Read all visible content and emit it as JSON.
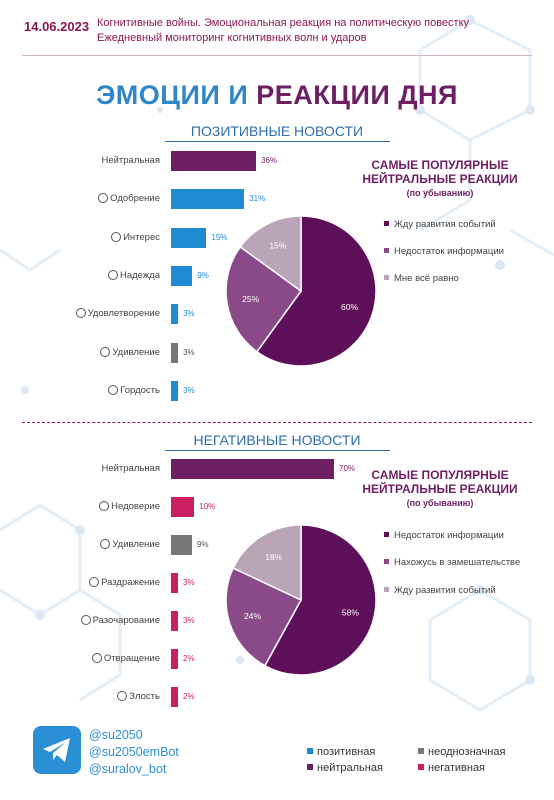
{
  "header": {
    "date": "14.06.2023",
    "line1": "Когнитивные войны. Эмоциональная реакция на политическую повестку",
    "line2": "Ежедневный мониторинг когнитивных волн и ударов"
  },
  "title": {
    "part1": "ЭМОЦИИ И",
    "part2": "РЕАКЦИИ ДНЯ"
  },
  "colors": {
    "positive": "#1f8bd4",
    "ambiguous": "#777777",
    "neutral": "#6e1f64",
    "negative": "#cc1e63",
    "pie1": "#5e0f59",
    "pie2": "#8a4a8a",
    "pie3": "#b9a4b8"
  },
  "positive": {
    "section_title": "ПОЗИТИВНЫЕ НОВОСТИ",
    "reactions_title": [
      "САМЫЕ ПОПУЛЯРНЫЕ",
      "НЕЙТРАЛЬНЫЕ РЕАКЦИИ"
    ],
    "reactions_sub": "(по убыванию)",
    "legend": [
      "Жду развития событий",
      "Недостаток информации",
      "Мне всё равно"
    ]
  },
  "negative": {
    "section_title": "НЕГАТИВНЫЕ НОВОСТИ",
    "reactions_title": [
      "САМЫЕ ПОПУЛЯРНЫЕ",
      "НЕЙТРАЛЬНЫЕ РЕАКЦИИ"
    ],
    "reactions_sub": "(по убыванию)",
    "legend": [
      "Недостаток информации",
      "Нахожусь в замешательстве",
      "Жду развития событий"
    ]
  },
  "chart_data": [
    {
      "type": "bar",
      "orientation": "horizontal",
      "title": "ПОЗИТИВНЫЕ НОВОСТИ",
      "categories": [
        "Нейтральная",
        "Одобрение",
        "Интерес",
        "Надежда",
        "Удовлетворение",
        "Удивление",
        "Гордость"
      ],
      "icons": [
        "",
        "heart-icon",
        "thinking-face-icon",
        "praying-hands-icon",
        "smiling-face-icon",
        "surprised-face-icon",
        "trophy-icon"
      ],
      "values": [
        36,
        31,
        15,
        9,
        3,
        3,
        3
      ],
      "value_labels": [
        "36%",
        "31%",
        "15%",
        "9%",
        "3%",
        "3%",
        "3%"
      ],
      "kinds": [
        "neutral",
        "positive",
        "positive",
        "positive",
        "positive",
        "ambiguous",
        "positive"
      ]
    },
    {
      "type": "pie",
      "labels": [
        "Жду развития событий",
        "Недостаток информации",
        "Мне всё равно"
      ],
      "values": [
        60,
        25,
        15
      ],
      "value_labels": [
        "60%",
        "25%",
        "15%"
      ]
    },
    {
      "type": "bar",
      "orientation": "horizontal",
      "title": "НЕГАТИВНЫЕ НОВОСТИ",
      "categories": [
        "Нейтральная",
        "Недоверие",
        "Удивление",
        "Раздражение",
        "Разочарование",
        "Отвращение",
        "Злость"
      ],
      "icons": [
        "",
        "unamused-face-icon",
        "surprised-face-icon",
        "angry-face-icon",
        "disappointed-face-icon",
        "disgusted-face-icon",
        "angry-face-icon"
      ],
      "values": [
        70,
        10,
        9,
        3,
        3,
        2,
        2
      ],
      "value_labels": [
        "70%",
        "10%",
        "9%",
        "3%",
        "3%",
        "2%",
        "2%"
      ],
      "kinds": [
        "neutral",
        "negative",
        "ambiguous",
        "negative",
        "negative",
        "negative",
        "negative"
      ]
    },
    {
      "type": "pie",
      "labels": [
        "Недостаток информации",
        "Нахожусь в замешательстве",
        "Жду развития событий"
      ],
      "values": [
        58,
        24,
        18
      ],
      "value_labels": [
        "58%",
        "24%",
        "18%"
      ]
    }
  ],
  "footer": {
    "handles": [
      "@su2050",
      "@su2050emBot",
      "@suralov_bot"
    ],
    "legend": [
      {
        "label": "позитивная",
        "kind": "positive"
      },
      {
        "label": "неоднозначная",
        "kind": "ambiguous"
      },
      {
        "label": "нейтральная",
        "kind": "neutral"
      },
      {
        "label": "негативная",
        "kind": "negative"
      }
    ],
    "logo_icon": "telegram-icon"
  }
}
